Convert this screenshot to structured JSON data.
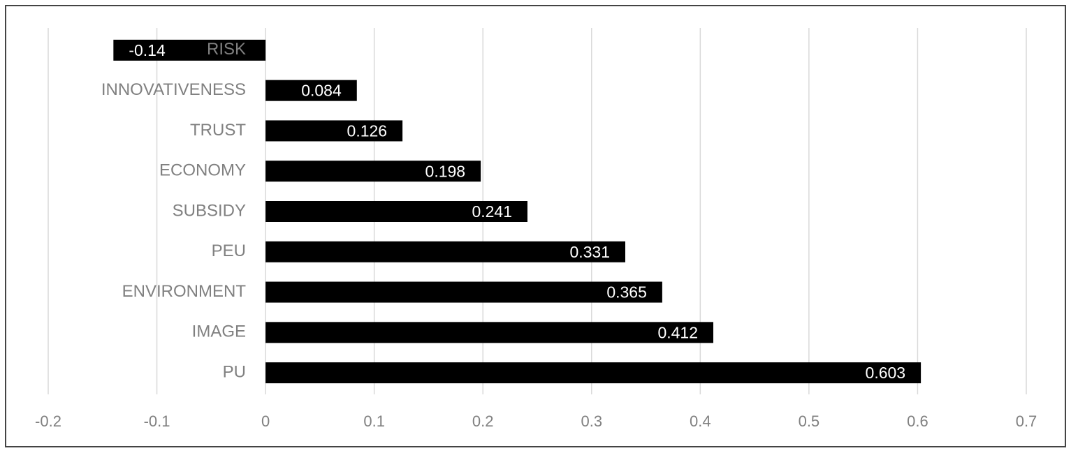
{
  "chart_data": {
    "type": "bar",
    "orientation": "horizontal",
    "categories": [
      "RISK",
      "INNOVATIVENESS",
      "TRUST",
      "ECONOMY",
      "SUBSIDY",
      "PEU",
      "ENVIRONMENT",
      "IMAGE",
      "PU"
    ],
    "values": [
      -0.14,
      0.084,
      0.126,
      0.198,
      0.241,
      0.331,
      0.365,
      0.412,
      0.603
    ],
    "color": "#000000",
    "xlim": [
      -0.2,
      0.7
    ],
    "xticks": [
      -0.2,
      -0.1,
      0,
      0.1,
      0.2,
      0.3,
      0.4,
      0.5,
      0.6,
      0.7
    ],
    "grid": true
  }
}
